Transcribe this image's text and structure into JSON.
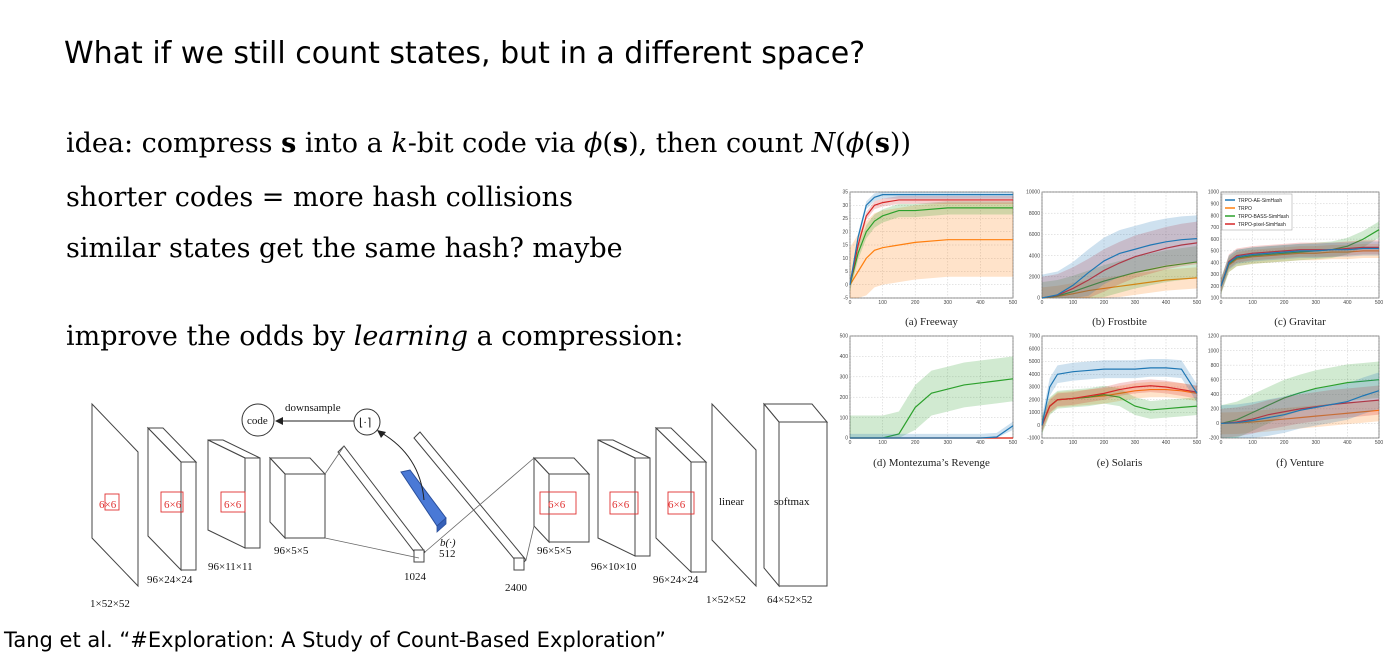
{
  "slide": {
    "title": "What if we still count states, but in a different space?",
    "line1": {
      "p1": "idea: compress ",
      "s1": "s",
      "p2": " into a ",
      "k": "k",
      "p3": "-bit code via ",
      "phi1": "ϕ",
      "p4": "(",
      "s2": "s",
      "p5": "), then count ",
      "N": "N",
      "p6": "(",
      "phi2": "ϕ",
      "p7": "(",
      "s3": "s",
      "p8": "))"
    },
    "line2": "shorter codes = more hash collisions",
    "line3": "similar states get the same hash? maybe",
    "line4": {
      "p1": "improve the odds by ",
      "em": "learning",
      "p2": " a compression:"
    },
    "citation": "Tang et al. “#Exploration: A Study of Count-Based Exploration”"
  },
  "network": {
    "labels": {
      "code": "code",
      "downsample": "downsample",
      "round": "⌊·⌉",
      "b": "b(·)",
      "b512": "512",
      "linear": "linear",
      "softmax": "softmax",
      "k6x6": "6×6"
    },
    "dims": {
      "in": "1×52×52",
      "c1": "96×24×24",
      "c2": "96×11×11",
      "c3": "96×5×5",
      "fc1": "1024",
      "fc2": "2400",
      "d1": "96×5×5",
      "d2": "96×10×10",
      "d3": "96×24×24",
      "out1": "1×52×52",
      "out2": "64×52×52"
    }
  },
  "legend": [
    "TRPO-AE-SimHash",
    "TRPO",
    "TRPO-BASS-SimHash",
    "TRPO-pixel-SimHash"
  ],
  "colors": {
    "ae": "#1f77b4",
    "trpo": "#ff7f0e",
    "bass": "#2ca02c",
    "pixel": "#d62728"
  },
  "chart_data": [
    {
      "type": "line",
      "title": "(a) Freeway",
      "xlim": [
        0,
        500
      ],
      "ylim": [
        -5,
        35
      ],
      "xticks": [
        "0",
        "100",
        "200",
        "300",
        "400",
        "500"
      ],
      "yticks": [
        "-5",
        "0",
        "5",
        "10",
        "15",
        "20",
        "25",
        "30",
        "35"
      ],
      "x": [
        0,
        25,
        50,
        75,
        100,
        150,
        200,
        300,
        400,
        500
      ],
      "series": [
        {
          "name": "TRPO-AE-SimHash",
          "values": [
            0,
            18,
            30,
            33,
            34,
            34,
            34,
            34,
            34,
            34
          ],
          "band": 1.5
        },
        {
          "name": "TRPO",
          "values": [
            0,
            5,
            10,
            13,
            14,
            15,
            16,
            17,
            17,
            17
          ],
          "band": 14
        },
        {
          "name": "TRPO-BASS-SimHash",
          "values": [
            0,
            12,
            20,
            24,
            26,
            28,
            28,
            29,
            29,
            29
          ],
          "band": 2.5
        },
        {
          "name": "TRPO-pixel-SimHash",
          "values": [
            0,
            15,
            26,
            30,
            31,
            32,
            32,
            32,
            32,
            32
          ],
          "band": 1.5
        }
      ]
    },
    {
      "type": "line",
      "title": "(b) Frostbite",
      "xlim": [
        0,
        500
      ],
      "ylim": [
        0,
        10000
      ],
      "xticks": [
        "0",
        "100",
        "200",
        "300",
        "400",
        "500"
      ],
      "yticks": [
        "0",
        "2000",
        "4000",
        "6000",
        "8000",
        "10000"
      ],
      "x": [
        0,
        50,
        100,
        150,
        200,
        250,
        300,
        350,
        400,
        450,
        500
      ],
      "series": [
        {
          "name": "TRPO-AE-SimHash",
          "values": [
            0,
            300,
            1200,
            2400,
            3500,
            4200,
            4600,
            5000,
            5300,
            5500,
            5600
          ],
          "band": 2200
        },
        {
          "name": "TRPO",
          "values": [
            0,
            150,
            400,
            700,
            900,
            1100,
            1300,
            1500,
            1700,
            1800,
            1900
          ],
          "band": 1000
        },
        {
          "name": "TRPO-BASS-SimHash",
          "values": [
            0,
            200,
            600,
            1100,
            1600,
            2000,
            2400,
            2700,
            3000,
            3200,
            3400
          ],
          "band": 1500
        },
        {
          "name": "TRPO-pixel-SimHash",
          "values": [
            0,
            250,
            900,
            1700,
            2600,
            3300,
            3900,
            4300,
            4700,
            5000,
            5200
          ],
          "band": 2000
        }
      ]
    },
    {
      "type": "line",
      "title": "(c) Gravitar",
      "xlim": [
        0,
        500
      ],
      "ylim": [
        100,
        1000
      ],
      "xticks": [
        "0",
        "100",
        "200",
        "300",
        "400",
        "500"
      ],
      "yticks": [
        "100",
        "200",
        "300",
        "400",
        "500",
        "600",
        "700",
        "800",
        "900",
        "1000"
      ],
      "x": [
        0,
        25,
        50,
        100,
        150,
        200,
        250,
        300,
        350,
        400,
        450,
        500
      ],
      "series": [
        {
          "name": "TRPO-AE-SimHash",
          "values": [
            200,
            400,
            450,
            470,
            480,
            490,
            500,
            500,
            510,
            510,
            520,
            520
          ],
          "band": 60
        },
        {
          "name": "TRPO",
          "values": [
            200,
            380,
            430,
            450,
            460,
            470,
            480,
            480,
            490,
            490,
            500,
            500
          ],
          "band": 60
        },
        {
          "name": "TRPO-BASS-SimHash",
          "values": [
            200,
            390,
            440,
            460,
            470,
            480,
            490,
            500,
            510,
            540,
            600,
            680
          ],
          "band": 70
        },
        {
          "name": "TRPO-pixel-SimHash",
          "values": [
            200,
            410,
            460,
            480,
            490,
            500,
            510,
            510,
            510,
            520,
            530,
            530
          ],
          "band": 60
        }
      ]
    },
    {
      "type": "line",
      "title": "(d) Montezuma’s Revenge",
      "xlim": [
        0,
        500
      ],
      "ylim": [
        0,
        500
      ],
      "xticks": [
        "0",
        "100",
        "200",
        "300",
        "400",
        "500"
      ],
      "yticks": [
        "0",
        "100",
        "200",
        "300",
        "400",
        "500"
      ],
      "x": [
        0,
        100,
        150,
        200,
        250,
        300,
        350,
        400,
        450,
        500
      ],
      "series": [
        {
          "name": "TRPO-AE-SimHash",
          "values": [
            0,
            0,
            0,
            0,
            0,
            0,
            0,
            0,
            5,
            60
          ],
          "band": 20
        },
        {
          "name": "TRPO",
          "values": [
            0,
            0,
            0,
            0,
            0,
            0,
            0,
            0,
            0,
            0
          ],
          "band": 0
        },
        {
          "name": "TRPO-BASS-SimHash",
          "values": [
            0,
            0,
            20,
            150,
            220,
            240,
            260,
            270,
            280,
            290
          ],
          "band": 110
        },
        {
          "name": "TRPO-pixel-SimHash",
          "values": [
            0,
            0,
            0,
            0,
            0,
            0,
            0,
            0,
            0,
            0
          ],
          "band": 0
        }
      ]
    },
    {
      "type": "line",
      "title": "(e) Solaris",
      "xlim": [
        0,
        500
      ],
      "ylim": [
        -1000,
        7000
      ],
      "xticks": [
        "0",
        "100",
        "200",
        "300",
        "400",
        "500"
      ],
      "yticks": [
        "-1000",
        "0",
        "1000",
        "2000",
        "3000",
        "4000",
        "5000",
        "6000",
        "7000"
      ],
      "x": [
        0,
        25,
        50,
        100,
        150,
        200,
        250,
        300,
        350,
        400,
        450,
        500
      ],
      "series": [
        {
          "name": "TRPO-AE-SimHash",
          "values": [
            0,
            3000,
            4000,
            4200,
            4300,
            4400,
            4400,
            4400,
            4500,
            4500,
            4400,
            2500
          ],
          "band": 700
        },
        {
          "name": "TRPO",
          "values": [
            0,
            1500,
            2000,
            2100,
            2200,
            2300,
            2500,
            2700,
            2800,
            2800,
            2700,
            2500
          ],
          "band": 600
        },
        {
          "name": "TRPO-BASS-SimHash",
          "values": [
            0,
            1500,
            2000,
            2100,
            2200,
            2400,
            2200,
            1500,
            1200,
            1300,
            1400,
            1500
          ],
          "band": 700
        },
        {
          "name": "TRPO-pixel-SimHash",
          "values": [
            0,
            1500,
            2000,
            2100,
            2300,
            2500,
            2800,
            3000,
            3100,
            3000,
            2800,
            2600
          ],
          "band": 500
        }
      ]
    },
    {
      "type": "line",
      "title": "(f) Venture",
      "xlim": [
        0,
        500
      ],
      "ylim": [
        -200,
        1200
      ],
      "xticks": [
        "0",
        "100",
        "200",
        "300",
        "400",
        "500"
      ],
      "yticks": [
        "-200",
        "0",
        "200",
        "400",
        "600",
        "800",
        "1000",
        "1200"
      ],
      "x": [
        0,
        50,
        100,
        150,
        200,
        250,
        300,
        350,
        400,
        450,
        500
      ],
      "series": [
        {
          "name": "TRPO-AE-SimHash",
          "values": [
            0,
            10,
            40,
            80,
            120,
            180,
            220,
            260,
            300,
            380,
            450
          ],
          "band": 250
        },
        {
          "name": "TRPO",
          "values": [
            0,
            5,
            20,
            40,
            60,
            80,
            100,
            120,
            140,
            160,
            180
          ],
          "band": 150
        },
        {
          "name": "TRPO-BASS-SimHash",
          "values": [
            0,
            50,
            150,
            250,
            350,
            420,
            480,
            520,
            560,
            580,
            600
          ],
          "band": 250
        },
        {
          "name": "TRPO-pixel-SimHash",
          "values": [
            0,
            20,
            60,
            120,
            160,
            200,
            230,
            260,
            280,
            300,
            320
          ],
          "band": 200
        }
      ]
    }
  ]
}
